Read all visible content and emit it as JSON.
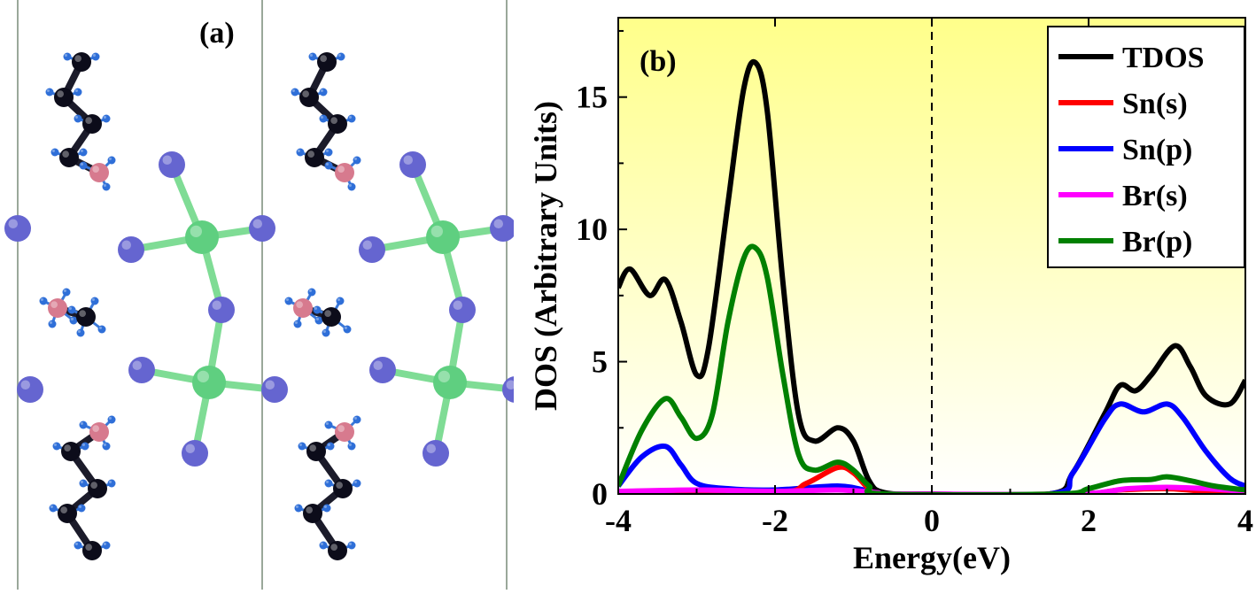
{
  "panel_a": {
    "label": "(a)",
    "colors": {
      "carbon": "#0c0c1a",
      "hydrogen": "#2f6fd8",
      "nitrogen": "#d77a8e",
      "tin": "#5fcf80",
      "bromine": "#6565d0",
      "bond_sn_br": "#7fdc95",
      "bond_br": "#6565d0"
    }
  },
  "chart_data": {
    "type": "line",
    "panel_label": "(b)",
    "xlabel": "Energy(eV)",
    "ylabel": "DOS (Arbitrary Units)",
    "xlim": [
      -4,
      4
    ],
    "ylim": [
      0,
      18
    ],
    "xticks": [
      -4,
      -2,
      0,
      2,
      4
    ],
    "yticks": [
      0,
      5,
      10,
      15
    ],
    "fermi_level": 0,
    "background_gradient": [
      "#ffff8a",
      "#ffffff"
    ],
    "legend_position": "top-right",
    "grid": false,
    "series": [
      {
        "name": "TDOS",
        "color": "#000000",
        "points": [
          [
            -4,
            7.8
          ],
          [
            -3.85,
            8.5
          ],
          [
            -3.6,
            7.5
          ],
          [
            -3.4,
            8.1
          ],
          [
            -3.2,
            6.5
          ],
          [
            -3.0,
            4.5
          ],
          [
            -2.85,
            5.5
          ],
          [
            -2.6,
            11.0
          ],
          [
            -2.4,
            15.3
          ],
          [
            -2.25,
            16.3
          ],
          [
            -2.1,
            14.5
          ],
          [
            -1.9,
            8.0
          ],
          [
            -1.7,
            3.0
          ],
          [
            -1.5,
            2.0
          ],
          [
            -1.2,
            2.5
          ],
          [
            -1.0,
            2.0
          ],
          [
            -0.8,
            0.5
          ],
          [
            -0.6,
            0.05
          ],
          [
            0,
            0
          ],
          [
            1.5,
            0
          ],
          [
            1.8,
            0.8
          ],
          [
            2.2,
            3.0
          ],
          [
            2.4,
            4.1
          ],
          [
            2.6,
            3.9
          ],
          [
            2.8,
            4.5
          ],
          [
            3.1,
            5.6
          ],
          [
            3.3,
            4.8
          ],
          [
            3.5,
            3.7
          ],
          [
            3.8,
            3.4
          ],
          [
            4.0,
            4.3
          ]
        ]
      },
      {
        "name": "Sn(s)",
        "color": "#ff0000",
        "points": [
          [
            -4,
            0.05
          ],
          [
            -2.0,
            0.05
          ],
          [
            -1.6,
            0.4
          ],
          [
            -1.2,
            1.0
          ],
          [
            -1.0,
            0.8
          ],
          [
            -0.8,
            0.2
          ],
          [
            -0.6,
            0
          ],
          [
            1.8,
            0
          ],
          [
            2.4,
            0.15
          ],
          [
            3.0,
            0.2
          ],
          [
            3.5,
            0.1
          ],
          [
            4.0,
            0.05
          ]
        ]
      },
      {
        "name": "Sn(p)",
        "color": "#0000ff",
        "points": [
          [
            -4,
            0.3
          ],
          [
            -3.7,
            1.4
          ],
          [
            -3.4,
            1.8
          ],
          [
            -3.2,
            1.1
          ],
          [
            -3.0,
            0.4
          ],
          [
            -2.6,
            0.2
          ],
          [
            -2.0,
            0.15
          ],
          [
            -1.2,
            0.3
          ],
          [
            -0.8,
            0.1
          ],
          [
            -0.6,
            0
          ],
          [
            1.5,
            0
          ],
          [
            1.8,
            0.8
          ],
          [
            2.2,
            2.8
          ],
          [
            2.4,
            3.4
          ],
          [
            2.7,
            3.1
          ],
          [
            3.0,
            3.4
          ],
          [
            3.2,
            2.9
          ],
          [
            3.5,
            1.6
          ],
          [
            3.8,
            0.6
          ],
          [
            4.0,
            0.3
          ]
        ]
      },
      {
        "name": "Br(s)",
        "color": "#ff00ff",
        "points": [
          [
            -4,
            0.1
          ],
          [
            -3.0,
            0.15
          ],
          [
            -2.0,
            0.1
          ],
          [
            -1.2,
            0.15
          ],
          [
            -0.7,
            0.05
          ],
          [
            -0.5,
            0
          ],
          [
            1.8,
            0
          ],
          [
            2.5,
            0.2
          ],
          [
            3.0,
            0.25
          ],
          [
            3.5,
            0.2
          ],
          [
            4.0,
            0.1
          ]
        ]
      },
      {
        "name": "Br(p)",
        "color": "#008000",
        "points": [
          [
            -4,
            0.3
          ],
          [
            -3.7,
            2.4
          ],
          [
            -3.4,
            3.6
          ],
          [
            -3.2,
            2.9
          ],
          [
            -3.0,
            2.1
          ],
          [
            -2.8,
            3.0
          ],
          [
            -2.6,
            6.5
          ],
          [
            -2.4,
            8.9
          ],
          [
            -2.25,
            9.3
          ],
          [
            -2.1,
            8.2
          ],
          [
            -1.9,
            4.5
          ],
          [
            -1.7,
            1.5
          ],
          [
            -1.5,
            0.9
          ],
          [
            -1.2,
            1.2
          ],
          [
            -1.0,
            0.9
          ],
          [
            -0.8,
            0.3
          ],
          [
            -0.6,
            0
          ],
          [
            1.6,
            0
          ],
          [
            2.0,
            0.2
          ],
          [
            2.4,
            0.5
          ],
          [
            2.8,
            0.55
          ],
          [
            3.0,
            0.65
          ],
          [
            3.3,
            0.5
          ],
          [
            3.6,
            0.3
          ],
          [
            4.0,
            0.15
          ]
        ]
      }
    ]
  }
}
